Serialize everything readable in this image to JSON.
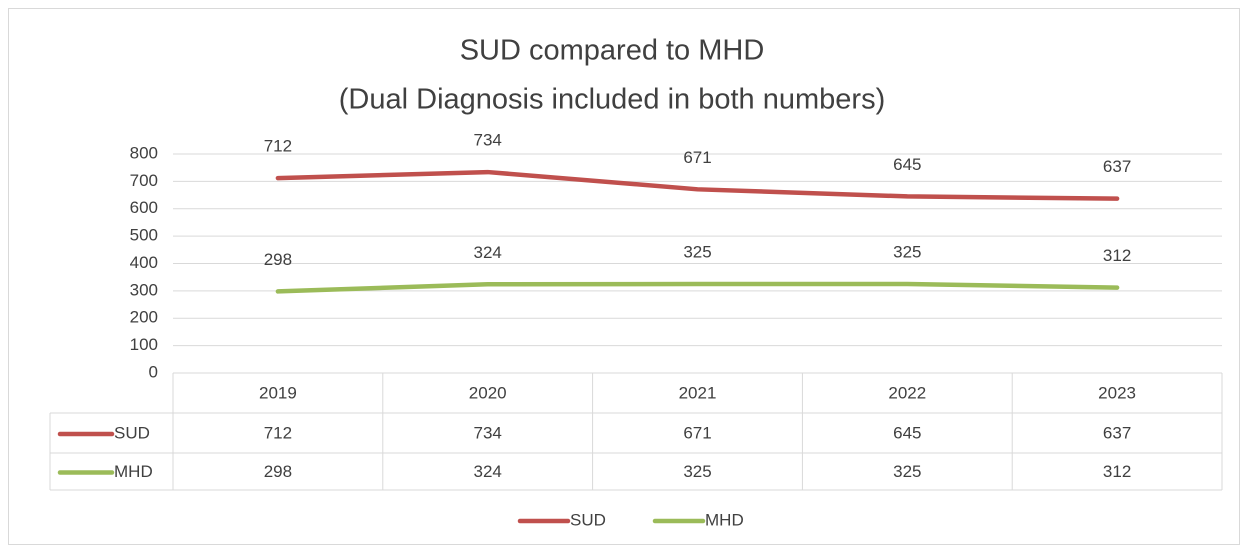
{
  "chart_data": {
    "type": "line",
    "title": [
      "SUD compared to MHD",
      "(Dual Diagnosis included in both numbers)"
    ],
    "categories": [
      "2019",
      "2020",
      "2021",
      "2022",
      "2023"
    ],
    "series": [
      {
        "name": "SUD",
        "color": "#c0504d",
        "values": [
          712,
          734,
          671,
          645,
          637
        ]
      },
      {
        "name": "MHD",
        "color": "#9bbb59",
        "values": [
          298,
          324,
          325,
          325,
          312
        ]
      }
    ],
    "ylim": [
      0,
      800
    ],
    "yticks": [
      0,
      100,
      200,
      300,
      400,
      500,
      600,
      700,
      800
    ],
    "grid": true,
    "data_table": true,
    "legend": "bottom"
  }
}
